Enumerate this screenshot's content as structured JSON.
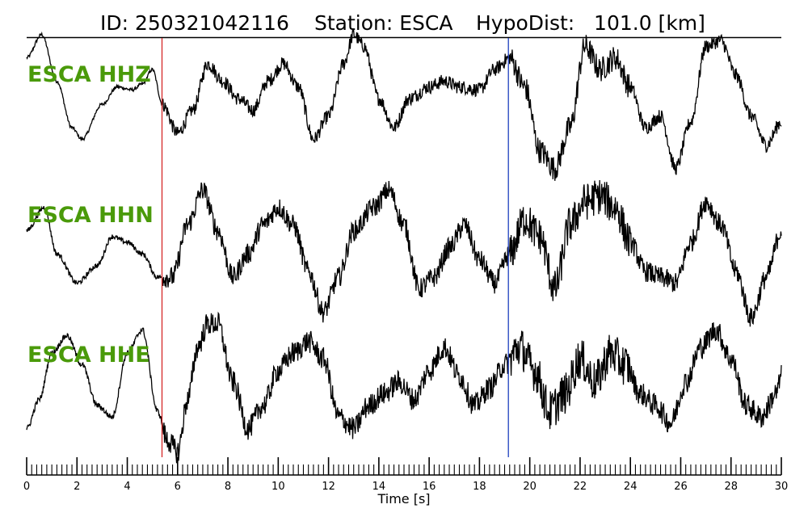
{
  "title": {
    "id_text": "ID: 250321042116",
    "station_text": "Station: ESCA",
    "dist_text": "HypoDist:   101.0 [km]"
  },
  "colors": {
    "trace": "#000000",
    "label": "#4a9a0a",
    "p_pick": "#d62728",
    "s_pick": "#1f3fbf"
  },
  "chart_data": {
    "type": "line",
    "xlabel": "Time [s]",
    "xlim": [
      0,
      30
    ],
    "major_ticks": [
      0,
      2,
      4,
      6,
      8,
      10,
      12,
      14,
      16,
      18,
      20,
      22,
      24,
      26,
      28,
      30
    ],
    "minor_tick_step": 0.2,
    "picks": [
      {
        "phase": "P",
        "time": 5.38,
        "color": "#d62728"
      },
      {
        "phase": "S",
        "time": 19.15,
        "color": "#1f3fbf"
      }
    ],
    "series": [
      {
        "name": "ESCA HHZ",
        "x": [
          0,
          0.6,
          1.2,
          1.8,
          2.2,
          3.0,
          3.6,
          4.2,
          4.6,
          5.0,
          5.4,
          6.0,
          6.6,
          7.2,
          7.8,
          8.4,
          9.0,
          9.6,
          10.2,
          10.8,
          11.4,
          12.0,
          12.6,
          13.0,
          13.4,
          14.0,
          14.6,
          15.2,
          16.0,
          16.6,
          17.2,
          18.0,
          18.6,
          19.2,
          19.8,
          20.4,
          21.0,
          21.6,
          22.2,
          22.8,
          23.4,
          24.0,
          24.6,
          25.2,
          25.8,
          26.4,
          27.0,
          27.6,
          28.2,
          28.8,
          29.4,
          30.0
        ],
        "y": [
          0.7,
          1.1,
          0.3,
          -0.5,
          -0.7,
          -0.1,
          0.2,
          0.15,
          0.25,
          0.5,
          -0.1,
          -0.6,
          -0.2,
          0.6,
          0.3,
          0.0,
          -0.2,
          0.3,
          0.6,
          0.2,
          -0.7,
          -0.3,
          0.6,
          1.1,
          0.9,
          0.0,
          -0.5,
          0.0,
          0.2,
          0.3,
          0.2,
          0.15,
          0.5,
          0.7,
          0.2,
          -0.9,
          -1.2,
          -0.5,
          0.9,
          0.5,
          0.7,
          0.2,
          -0.5,
          -0.3,
          -1.2,
          -0.4,
          0.9,
          1.0,
          0.4,
          -0.3,
          -0.8,
          -0.4
        ],
        "jitter": 0.12
      },
      {
        "name": "ESCA HHN",
        "x": [
          0,
          0.7,
          1.2,
          2.0,
          2.8,
          3.4,
          4.0,
          4.6,
          5.2,
          5.8,
          6.4,
          7.0,
          7.6,
          8.2,
          8.8,
          9.4,
          10.0,
          10.6,
          11.2,
          11.8,
          12.4,
          13.0,
          13.8,
          14.4,
          15.0,
          15.6,
          16.2,
          16.8,
          17.4,
          18.0,
          18.6,
          19.2,
          19.8,
          20.4,
          21.0,
          21.6,
          22.2,
          22.8,
          23.4,
          24.0,
          24.6,
          25.2,
          25.8,
          26.4,
          27.0,
          27.6,
          28.2,
          28.8,
          29.4,
          30.0
        ],
        "y": [
          0.2,
          0.6,
          -0.2,
          -0.7,
          -0.4,
          0.1,
          0.0,
          -0.2,
          -0.6,
          -0.6,
          0.3,
          0.9,
          0.2,
          -0.6,
          -0.2,
          0.3,
          0.6,
          0.3,
          -0.5,
          -1.2,
          -0.6,
          0.2,
          0.6,
          0.9,
          0.3,
          -0.8,
          -0.6,
          -0.1,
          0.3,
          -0.3,
          -0.7,
          -0.2,
          0.4,
          0.1,
          -0.8,
          0.3,
          0.7,
          0.8,
          0.6,
          0.0,
          -0.5,
          -0.6,
          -0.7,
          0.0,
          0.7,
          0.3,
          -0.5,
          -1.3,
          -0.6,
          0.2
        ],
        "jitter": 0.18
      },
      {
        "name": "ESCA HHE",
        "x": [
          0,
          0.5,
          1.0,
          1.6,
          2.2,
          2.8,
          3.4,
          4.0,
          4.6,
          5.2,
          5.6,
          6.0,
          6.4,
          6.8,
          7.2,
          7.6,
          8.2,
          8.8,
          9.4,
          10.0,
          10.6,
          11.2,
          11.8,
          12.4,
          13.0,
          13.6,
          14.2,
          14.8,
          15.4,
          16.0,
          16.6,
          17.2,
          17.8,
          18.4,
          19.0,
          19.6,
          20.2,
          20.8,
          21.4,
          22.0,
          22.6,
          23.2,
          23.8,
          24.4,
          25.0,
          25.6,
          26.2,
          26.8,
          27.4,
          28.0,
          28.6,
          29.2,
          29.8,
          30.0
        ],
        "y": [
          -0.8,
          -0.3,
          0.5,
          0.8,
          0.3,
          -0.4,
          -0.6,
          0.5,
          0.9,
          -0.5,
          -1.0,
          -1.2,
          -0.3,
          0.6,
          1.0,
          1.0,
          0.0,
          -0.8,
          -0.4,
          0.2,
          0.5,
          0.7,
          0.4,
          -0.6,
          -0.8,
          -0.4,
          -0.2,
          0.0,
          -0.3,
          0.2,
          0.6,
          0.1,
          -0.4,
          -0.1,
          0.3,
          0.6,
          0.2,
          -0.5,
          -0.2,
          0.4,
          0.0,
          0.5,
          0.3,
          -0.2,
          -0.4,
          -0.7,
          0.0,
          0.6,
          0.9,
          0.4,
          -0.4,
          -0.6,
          -0.2,
          0.1
        ],
        "jitter": 0.2
      }
    ]
  }
}
